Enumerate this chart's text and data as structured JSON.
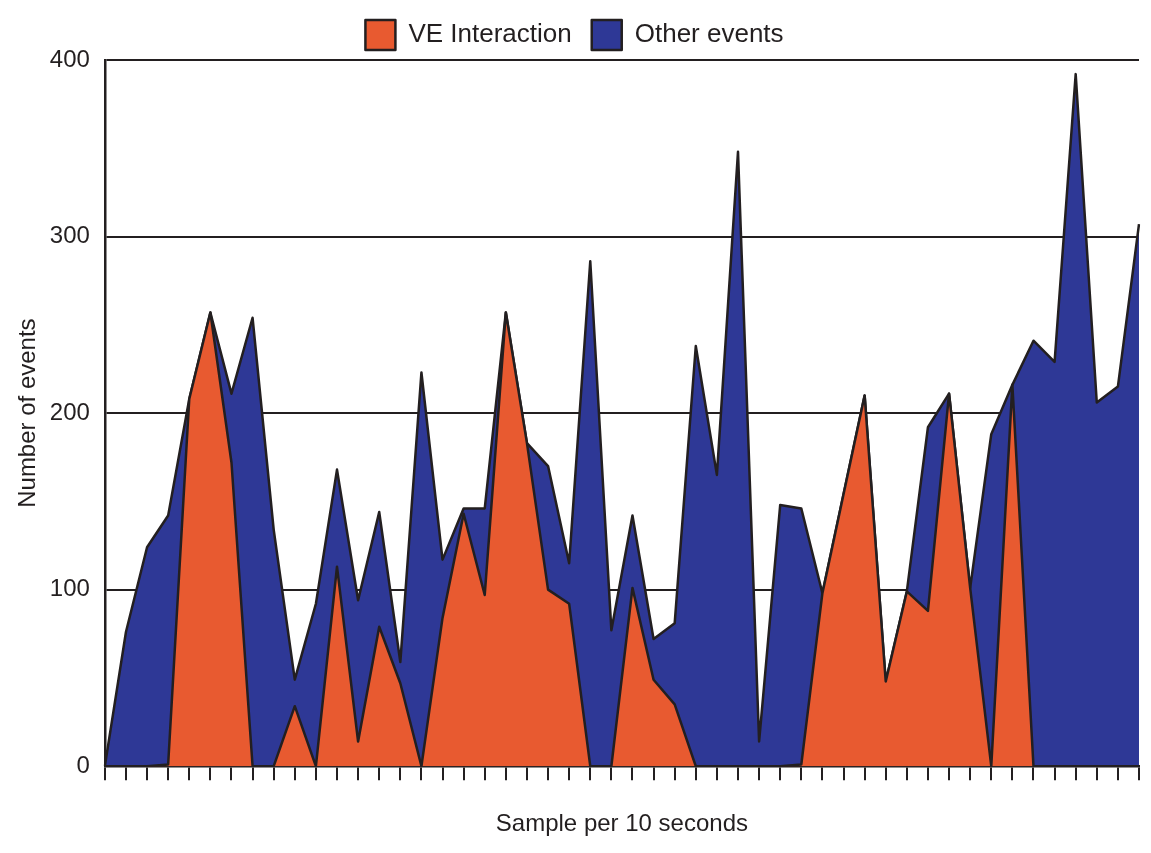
{
  "chart_data": {
    "type": "area",
    "stacked": true,
    "xlabel": "Sample per 10 seconds",
    "ylabel": "Number of events",
    "legend": "top",
    "grid": "y",
    "tick_labels": "y",
    "ylim": [
      0,
      400
    ],
    "yticks": [
      0,
      100,
      200,
      300,
      400
    ],
    "categories": [
      null,
      null,
      null,
      null,
      null,
      null,
      null,
      null,
      null,
      null,
      null,
      null,
      null,
      null,
      null,
      null,
      null,
      null,
      null,
      null,
      null,
      null,
      null,
      null,
      null,
      null,
      null,
      null,
      null,
      null,
      null,
      null,
      null,
      null,
      null,
      null,
      null,
      null,
      null,
      null,
      null,
      null,
      null,
      null,
      null,
      null,
      null,
      null,
      null,
      null
    ],
    "series": [
      {
        "name": "VE Interaction",
        "color": "#e85a30",
        "values": [
          0,
          0,
          0,
          1,
          208,
          257,
          172,
          0,
          0,
          34,
          0,
          113,
          14,
          79,
          47,
          0,
          84,
          143,
          97,
          257,
          183,
          100,
          92,
          0,
          0,
          101,
          49,
          35,
          0,
          0,
          0,
          0,
          0,
          1,
          98,
          154,
          210,
          48,
          99,
          88,
          211,
          101,
          0,
          216,
          0,
          0,
          0,
          0,
          0,
          0
        ]
      },
      {
        "name": "Other events",
        "color": "#2e3896",
        "values": [
          0,
          76,
          124,
          141,
          0,
          0,
          39,
          254,
          134,
          15,
          92,
          55,
          80,
          65,
          12,
          223,
          33,
          3,
          49,
          0,
          0,
          70,
          23,
          286,
          77,
          41,
          23,
          46,
          238,
          165,
          348,
          14,
          148,
          145,
          0,
          0,
          0,
          0,
          0,
          104,
          0,
          0,
          188,
          0,
          241,
          229,
          392,
          206,
          215,
          307
        ]
      }
    ]
  }
}
